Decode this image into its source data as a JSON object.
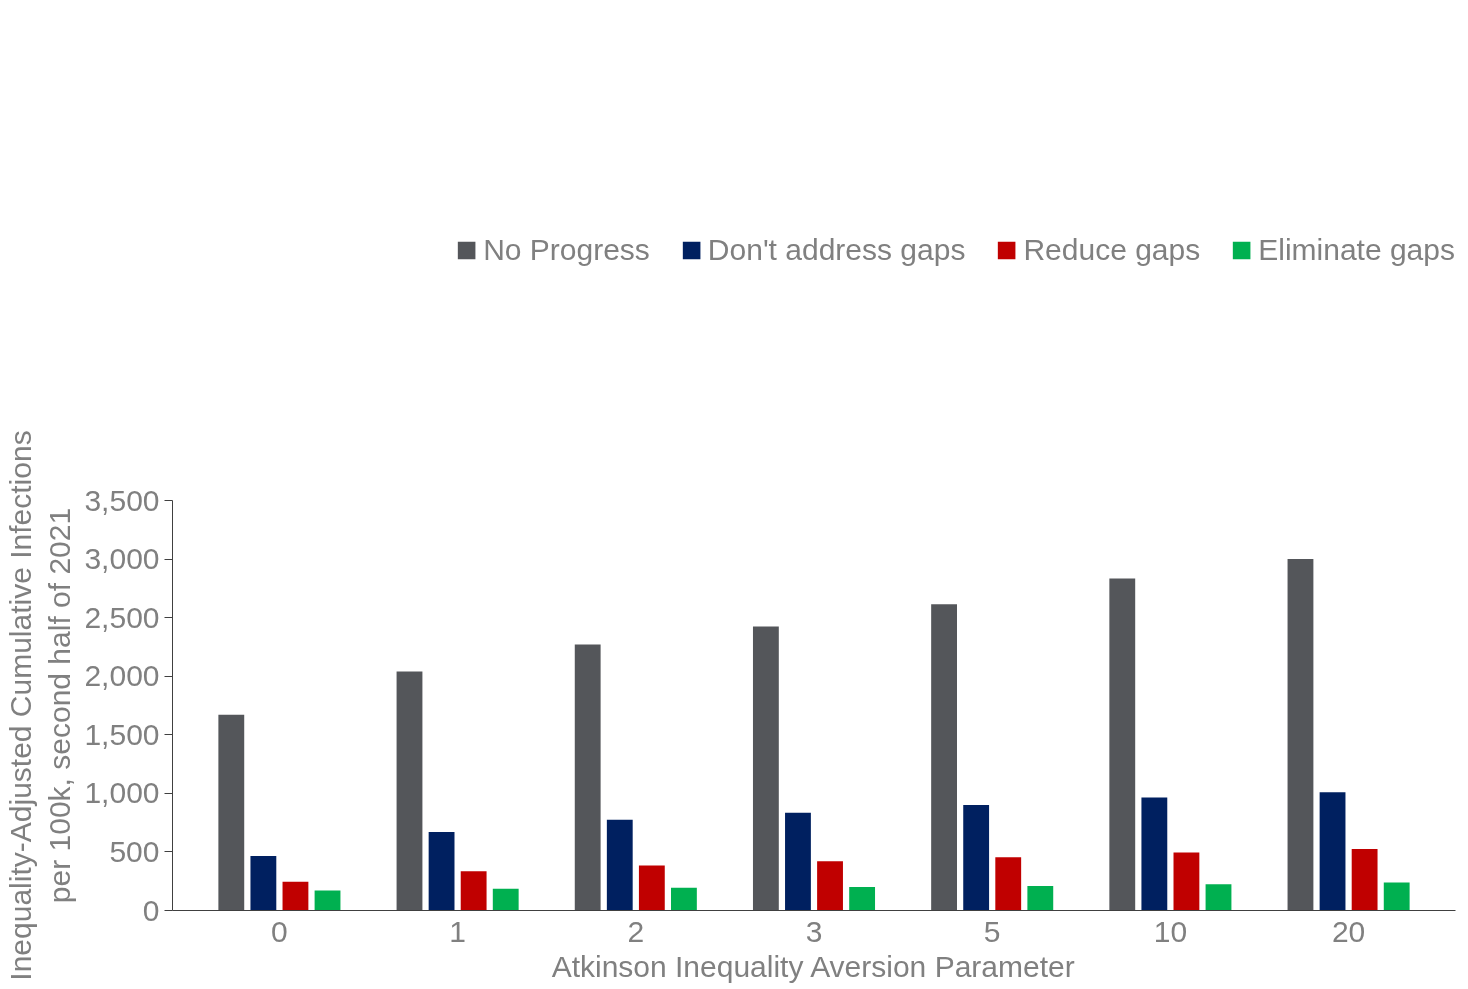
{
  "chart_data": {
    "type": "bar",
    "xlabel": "Atkinson Inequality Aversion Parameter",
    "ylabel": "Inequality-Adjusted Cumulative Infections\nper 100k, second half of 2021",
    "categories": [
      "0",
      "1",
      "2",
      "3",
      "5",
      "10",
      "20"
    ],
    "series": [
      {
        "name": "No Progress",
        "color": "#54565a",
        "values": [
          1670,
          2040,
          2270,
          2425,
          2615,
          2835,
          3000
        ]
      },
      {
        "name": "Don't address gaps",
        "color": "#002060",
        "values": [
          465,
          670,
          775,
          835,
          900,
          965,
          1010
        ]
      },
      {
        "name": "Reduce gaps",
        "color": "#c00000",
        "values": [
          245,
          335,
          385,
          420,
          455,
          495,
          525
        ]
      },
      {
        "name": "Eliminate gaps",
        "color": "#00b050",
        "values": [
          170,
          185,
          195,
          200,
          210,
          225,
          240
        ]
      }
    ],
    "ylim": [
      0,
      3500
    ],
    "yticks": [
      {
        "value": 0,
        "label": "0"
      },
      {
        "value": 500,
        "label": "500"
      },
      {
        "value": 1000,
        "label": "1,000"
      },
      {
        "value": 1500,
        "label": "1,500"
      },
      {
        "value": 2000,
        "label": "2,000"
      },
      {
        "value": 2500,
        "label": "2,500"
      },
      {
        "value": 3000,
        "label": "3,000"
      },
      {
        "value": 3500,
        "label": "3,500"
      }
    ],
    "grid": false,
    "legend": "top"
  }
}
